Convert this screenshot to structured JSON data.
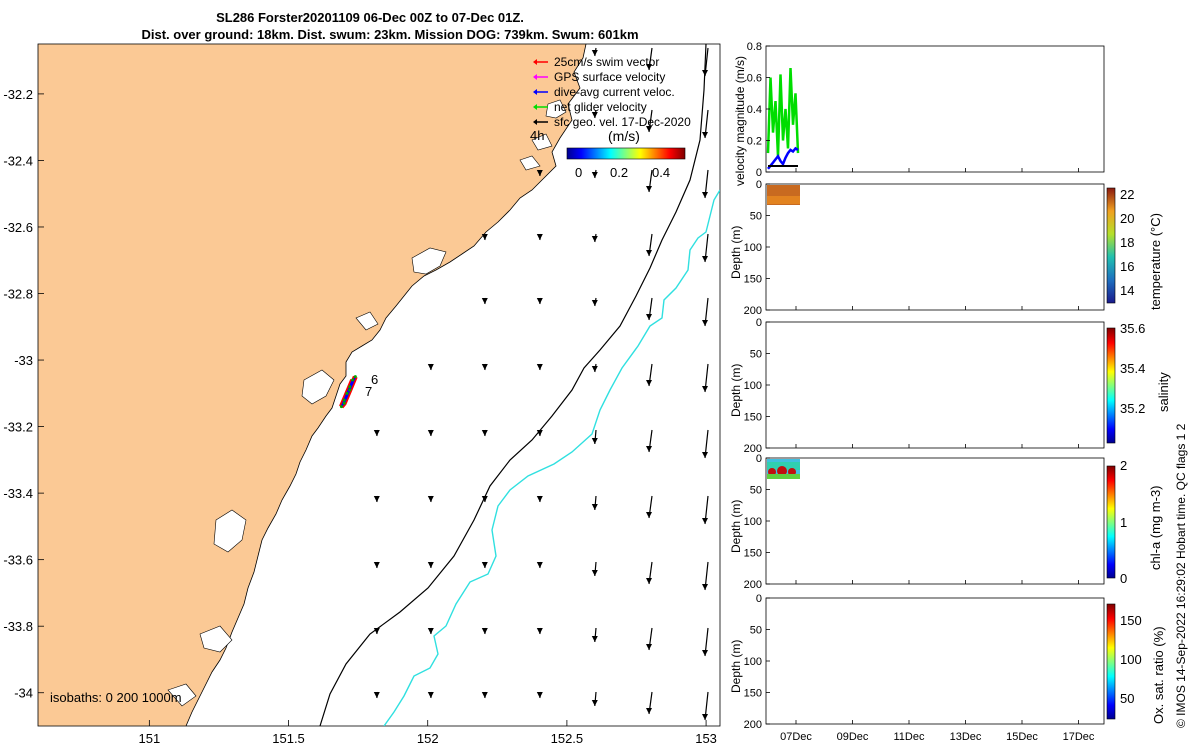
{
  "title_line1": "SL286 Forster20201109 06-Dec 00Z to 07-Dec 01Z.",
  "title_line2": "Dist. over ground: 18km. Dist. swum: 23km. Mission DOG: 739km. Swum: 601km",
  "footer_note": "© IMOS 14-Sep-2022 16:29:02 Hobart time. QC flags 1  2",
  "colors": {
    "land": "#fbc995",
    "isobath200": "#000000",
    "isobath1000": "#30e0e0",
    "gps": "#ff00ff",
    "dive_current": "#0000ff",
    "glider": "#00dd00",
    "swim": "#ff0000",
    "sst_current": "#000000"
  },
  "map": {
    "xlim": [
      150.6,
      153.05
    ],
    "ylim": [
      -34.1,
      -32.05
    ],
    "xticks": [
      151,
      151.5,
      152,
      152.5,
      153
    ],
    "xtick_labels": [
      "151",
      "151.5",
      "152",
      "152.5",
      "153"
    ],
    "yticks": [
      -32.2,
      -32.4,
      -32.6,
      -32.8,
      -33,
      -33.2,
      -33.4,
      -33.6,
      -33.8,
      -34
    ],
    "ytick_labels": [
      "-32.2",
      "-32.4",
      "-32.6",
      "-32.8",
      "-33",
      "-33.2",
      "-33.4",
      "-33.6",
      "-33.8",
      "-34"
    ],
    "isobath_label": "isobaths: 0   200  1000m",
    "legend": [
      {
        "label": "25cm/s swim vector",
        "color": "#ff0000"
      },
      {
        "label": "GPS surface velocity",
        "color": "#ff00ff"
      },
      {
        "label": "dive-avg current veloc.",
        "color": "#0000ff"
      },
      {
        "label": "net glider velocity",
        "color": "#00dd00"
      },
      {
        "label": "sfc geo. vel. 17-Dec-2020",
        "color": "#000000"
      }
    ],
    "hour_label": "4h",
    "colorbar": {
      "label": "(m/s)",
      "ticks": [
        "0",
        "0.2",
        "0.4"
      ]
    },
    "track_labels": [
      "6",
      "7"
    ]
  },
  "panels": {
    "xtick_labels": [
      "07Dec",
      "09Dec",
      "11Dec",
      "13Dec",
      "15Dec",
      "17Dec"
    ],
    "velocity": {
      "ylabel": "velocity magnitude (m/s)",
      "ylim": [
        0,
        0.8
      ],
      "yticks": [
        "0",
        "0.2",
        "0.4",
        "0.6",
        "0.8"
      ]
    },
    "depth_ylabel": "Depth (m)",
    "depth_ticks": [
      "0",
      "50",
      "100",
      "150",
      "200"
    ],
    "temperature": {
      "clabel": "temperature (°C)",
      "cticks": [
        "22",
        "20",
        "18",
        "16",
        "14"
      ]
    },
    "salinity": {
      "clabel": "salinity",
      "cticks": [
        "35.6",
        "35.4",
        "35.2"
      ]
    },
    "chla": {
      "clabel": "chl-a (mg m-3)",
      "cticks": [
        "2",
        "1",
        "0"
      ]
    },
    "oxygen": {
      "clabel": "Ox. sat. ratio (%)",
      "cticks": [
        "150",
        "100",
        "50"
      ]
    }
  },
  "chart_data": [
    {
      "type": "scatter",
      "title": "SL286 Forster20201109 06-Dec 00Z to 07-Dec 01Z.",
      "xlabel": "",
      "ylabel": "",
      "xlim": [
        150.6,
        153.05
      ],
      "ylim": [
        -34.1,
        -32.05
      ],
      "series": [
        {
          "name": "glider track",
          "x": [
            151.73,
            151.72,
            151.71,
            151.7,
            151.69,
            151.7,
            151.72,
            151.74
          ],
          "y": [
            -33.06,
            -33.08,
            -33.1,
            -33.12,
            -33.14,
            -33.13,
            -33.09,
            -33.05
          ]
        }
      ]
    },
    {
      "type": "line",
      "ylabel": "velocity magnitude (m/s)",
      "ylim": [
        0,
        0.8
      ],
      "series": [
        {
          "name": "net glider velocity",
          "values": [
            0.12,
            0.6,
            0.25,
            0.45,
            0.1,
            0.62,
            0.2,
            0.4,
            0.15,
            0.66,
            0.3,
            0.5,
            0.12
          ]
        },
        {
          "name": "dive-avg current veloc.",
          "values": [
            0.02,
            0.04,
            0.06,
            0.08,
            0.1,
            0.07,
            0.05,
            0.09,
            0.12,
            0.14,
            0.13,
            0.15,
            0.14
          ]
        }
      ]
    }
  ]
}
